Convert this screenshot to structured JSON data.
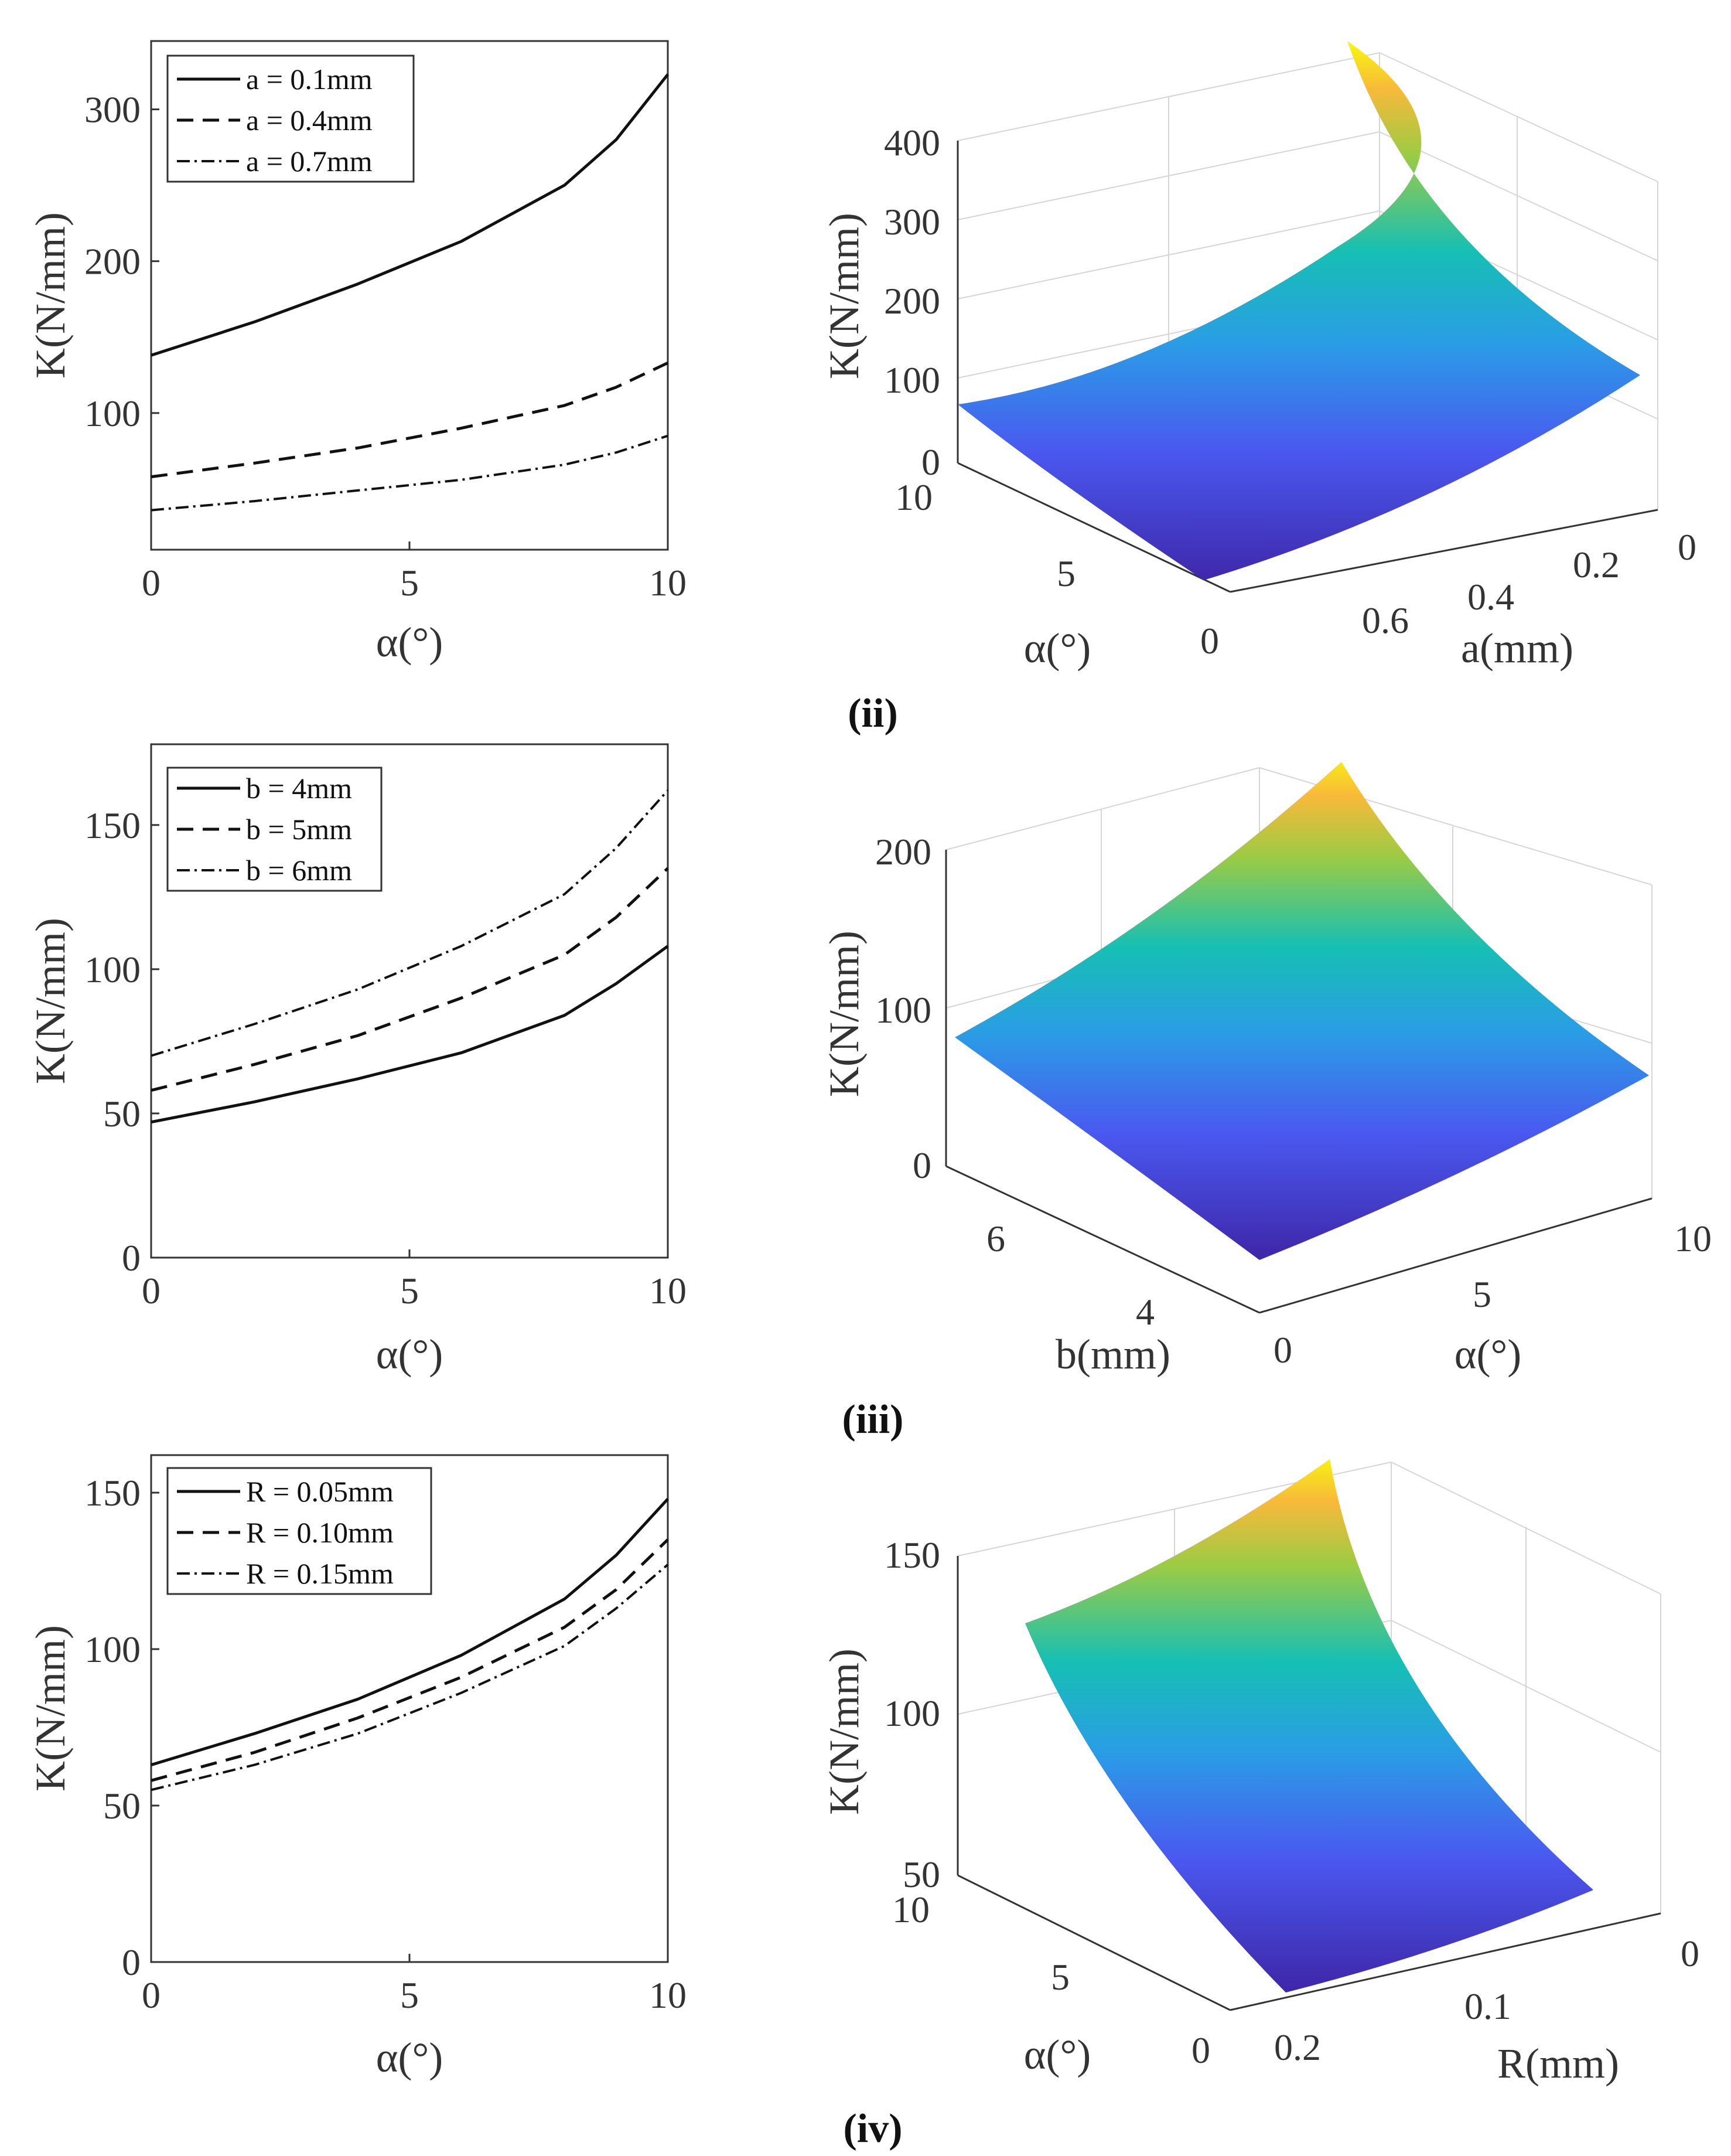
{
  "figure": {
    "panel_labels": [
      "(ii)",
      "(iii)",
      "(iv)"
    ]
  },
  "chart_data": [
    {
      "type": "line",
      "id": "row1-2d",
      "xlabel": "α(°)",
      "ylabel": "K(N/mm)",
      "x_ticks": [
        "0",
        "5",
        "10"
      ],
      "y_ticks": [
        "100",
        "200",
        "300"
      ],
      "xlim": [
        0,
        10
      ],
      "ylim": [
        10,
        345
      ],
      "legend_position": "top-left",
      "series": [
        {
          "name": "a = 0.1mm",
          "style": "solid",
          "x": [
            0,
            2,
            4,
            6,
            8,
            9,
            10
          ],
          "values": [
            138,
            160,
            185,
            213,
            250,
            280,
            323
          ]
        },
        {
          "name": "a = 0.4mm",
          "style": "dashed",
          "x": [
            0,
            2,
            4,
            6,
            8,
            9,
            10
          ],
          "values": [
            58,
            67,
            77,
            90,
            105,
            117,
            133
          ]
        },
        {
          "name": "a = 0.7mm",
          "style": "dashdot",
          "x": [
            0,
            2,
            4,
            6,
            8,
            9,
            10
          ],
          "values": [
            36,
            42,
            49,
            56,
            66,
            74,
            85
          ]
        }
      ]
    },
    {
      "type": "surface",
      "id": "row1-3d",
      "zlabel": "K(N/mm)",
      "xlabel": "a(mm)",
      "ylabel": "α(°)",
      "z_ticks": [
        "0",
        "100",
        "200",
        "300",
        "400"
      ],
      "x_ticks": [
        "0",
        "0.2",
        "0.4",
        "0.6"
      ],
      "y_ticks": [
        "0",
        "5",
        "10"
      ],
      "zlim": [
        0,
        420
      ],
      "corner_values": {
        "low_a_low_alpha": 120,
        "low_a_high_alpha": 440,
        "high_a_high_alpha": 70,
        "high_a_low_alpha": 30
      }
    },
    {
      "type": "line",
      "id": "row2-2d",
      "xlabel": "α(°)",
      "ylabel": "K(N/mm)",
      "x_ticks": [
        "0",
        "5",
        "10"
      ],
      "y_ticks": [
        "0",
        "50",
        "100",
        "150"
      ],
      "xlim": [
        0,
        10
      ],
      "ylim": [
        0,
        178
      ],
      "legend_position": "top-left",
      "series": [
        {
          "name": "b = 4mm",
          "style": "solid",
          "x": [
            0,
            2,
            4,
            6,
            8,
            9,
            10
          ],
          "values": [
            47,
            54,
            62,
            71,
            84,
            95,
            108
          ]
        },
        {
          "name": "b = 5mm",
          "style": "dashed",
          "x": [
            0,
            2,
            4,
            6,
            8,
            9,
            10
          ],
          "values": [
            58,
            67,
            77,
            90,
            105,
            118,
            135
          ]
        },
        {
          "name": "b = 6mm",
          "style": "dashdot",
          "x": [
            0,
            2,
            4,
            6,
            8,
            9,
            10
          ],
          "values": [
            70,
            81,
            93,
            108,
            126,
            142,
            162
          ]
        }
      ]
    },
    {
      "type": "surface",
      "id": "row2-3d",
      "zlabel": "K(N/mm)",
      "xlabel": "α(°)",
      "ylabel": "b(mm)",
      "z_ticks": [
        "0",
        "100",
        "200"
      ],
      "x_ticks": [
        "0",
        "5",
        "10"
      ],
      "y_ticks": [
        "4",
        "6"
      ],
      "zlim": [
        0,
        210
      ],
      "corner_values": {
        "low_alpha_high_b": 75,
        "high_alpha_high_b": 240,
        "high_alpha_low_b": 60,
        "low_alpha_low_b": 20
      }
    },
    {
      "type": "line",
      "id": "row3-2d",
      "xlabel": "α(°)",
      "ylabel": "K(N/mm)",
      "x_ticks": [
        "0",
        "5",
        "10"
      ],
      "y_ticks": [
        "0",
        "50",
        "100",
        "150"
      ],
      "xlim": [
        0,
        10
      ],
      "ylim": [
        0,
        162
      ],
      "legend_position": "top-left",
      "series": [
        {
          "name": "R = 0.05mm",
          "style": "solid",
          "x": [
            0,
            2,
            4,
            6,
            8,
            9,
            10
          ],
          "values": [
            63,
            73,
            84,
            98,
            116,
            130,
            148
          ]
        },
        {
          "name": "R = 0.10mm",
          "style": "dashed",
          "x": [
            0,
            2,
            4,
            6,
            8,
            9,
            10
          ],
          "values": [
            58,
            67,
            78,
            91,
            107,
            119,
            135
          ]
        },
        {
          "name": "R = 0.15mm",
          "style": "dashdot",
          "x": [
            0,
            2,
            4,
            6,
            8,
            9,
            10
          ],
          "values": [
            55,
            63,
            73,
            86,
            101,
            113,
            127
          ]
        }
      ]
    },
    {
      "type": "surface",
      "id": "row3-3d",
      "zlabel": "K(N/mm)",
      "xlabel": "R(mm)",
      "ylabel": "α(°)",
      "z_ticks": [
        "50",
        "100",
        "150"
      ],
      "x_ticks": [
        "0",
        "0.1",
        "0.2"
      ],
      "y_ticks": [
        "0",
        "5",
        "10"
      ],
      "zlim": [
        50,
        160
      ],
      "corner_values": {
        "low_R_high_alpha": 148,
        "high_R_high_alpha": 127,
        "high_R_low_alpha": 55,
        "low_R_low_alpha": 63
      }
    }
  ]
}
